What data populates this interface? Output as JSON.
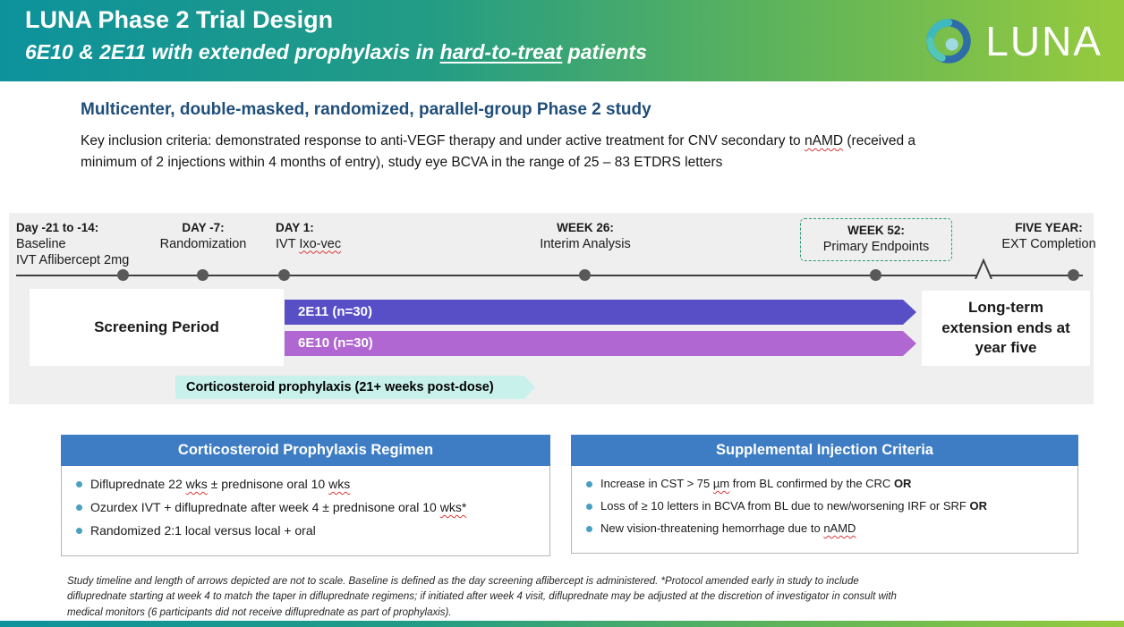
{
  "header": {
    "title": "LUNA Phase 2 Trial Design",
    "subtitle_segments": [
      {
        "t": "6E10 & 2E11 with extended prophylaxis in "
      },
      {
        "t": "hard-to-treat",
        "c": "u"
      },
      {
        "t": " patients"
      }
    ],
    "brand": "LUNA"
  },
  "study": {
    "title": "Multicenter, double-masked, randomized, parallel-group Phase 2 study",
    "criteria_segments": [
      {
        "t": "Key inclusion criteria: demonstrated response to anti-VEGF therapy and under active treatment for CNV secondary to "
      },
      {
        "t": "nAMD",
        "c": "sq"
      },
      {
        "t": " (received a minimum of 2 injections within 4 months of entry), study eye BCVA in the range of 25 – 83 ETDRS letters"
      }
    ]
  },
  "timeline": {
    "milestones": [
      {
        "title": "Day -21 to -14:",
        "line1": "Baseline",
        "line2": "IVT Aflibercept 2mg"
      },
      {
        "title": "DAY -7:",
        "line1": "Randomization"
      },
      {
        "title": "DAY 1:",
        "line1_segments": [
          {
            "t": "IVT "
          },
          {
            "t": "Ixo-vec",
            "c": "sq"
          }
        ]
      },
      {
        "title": "WEEK 26:",
        "line1": "Interim Analysis"
      },
      {
        "title": "WEEK 52:",
        "line1": "Primary Endpoints"
      },
      {
        "title": "FIVE YEAR:",
        "line1": "EXT Completion"
      }
    ],
    "screening_label": "Screening Period",
    "arms": [
      {
        "label": "2E11 (n=30)",
        "color": "#584fc7"
      },
      {
        "label": "6E10 (n=30)",
        "color": "#b067d1"
      }
    ],
    "longterm_label": "Long-term extension ends at year five",
    "prophylaxis_label": "Corticosteroid prophylaxis (21+ weeks post-dose)"
  },
  "regimen": {
    "title": "Corticosteroid Prophylaxis Regimen",
    "items": [
      [
        {
          "t": "Difluprednate 22 "
        },
        {
          "t": "wks",
          "c": "sq"
        },
        {
          "t": " ± prednisone oral 10 "
        },
        {
          "t": "wks",
          "c": "sq"
        }
      ],
      [
        {
          "t": "Ozurdex IVT + difluprednate after week 4 ± prednisone oral 10 "
        },
        {
          "t": "wks*",
          "c": "sq"
        }
      ],
      [
        {
          "t": "Randomized 2:1 local versus local + oral"
        }
      ]
    ]
  },
  "supplemental": {
    "title": "Supplemental Injection Criteria",
    "items": [
      [
        {
          "t": "Increase in CST > 75 "
        },
        {
          "t": "µm",
          "c": "sq"
        },
        {
          "t": " from BL confirmed by the CRC "
        },
        {
          "t": "OR",
          "c": "b"
        }
      ],
      [
        {
          "t": "Loss of ≥ 10 letters in BCVA from BL due to new/worsening IRF or SRF "
        },
        {
          "t": "OR",
          "c": "b"
        }
      ],
      [
        {
          "t": "New vision-threatening hemorrhage due to "
        },
        {
          "t": "nAMD",
          "c": "sq"
        }
      ]
    ]
  },
  "footnote": "Study timeline and length of arrows depicted are not to scale. Baseline is defined as the day screening aflibercept is administered.  *Protocol amended early in study to include difluprednate starting at week 4 to match the taper in difluprednate regimens; if initiated after week 4 visit, difluprednate may be adjusted at the discretion of investigator in consult with medical monitors (6 participants did not receive difluprednate as part of prophylaxis).",
  "colors": {
    "banner_gradient_left": "#0d929c",
    "banner_gradient_right": "#97cb3d",
    "study_title_blue": "#1f4e79",
    "arm_2e11_purple": "#584fc7",
    "arm_6e10_orchid": "#b067d1",
    "prophylaxis_band_teal": "#c9f1ec",
    "info_box_header_blue": "#3e7dc4",
    "week52_dashed_border_green": "#27997b",
    "timeline_panel_gray": "#efeff0"
  }
}
